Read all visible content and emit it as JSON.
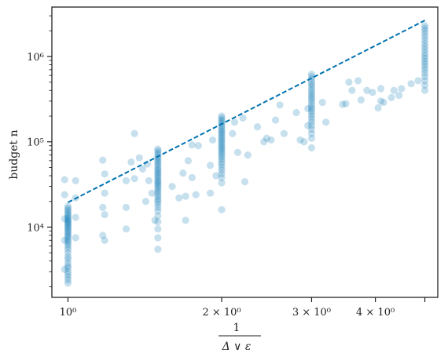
{
  "chart_data": {
    "type": "scatter",
    "title": "",
    "xlabel_num": "1",
    "xlabel_den": "Δ ∨ ε",
    "ylabel": "budget n",
    "xscale": "log",
    "yscale": "log",
    "xlim": [
      0.93,
      5.3
    ],
    "ylim": [
      1500,
      3800000
    ],
    "xticks": [
      {
        "value": 1,
        "label": "10⁰"
      },
      {
        "value": 2,
        "label": "2 × 10⁰"
      },
      {
        "value": 3,
        "label": "3 × 10⁰"
      },
      {
        "value": 4,
        "label": "4 × 10⁰"
      },
      {
        "value": 5,
        "label": ""
      }
    ],
    "yticks": [
      {
        "value": 10000,
        "label": "10⁴"
      },
      {
        "value": 100000,
        "label": "10⁵"
      },
      {
        "value": 1000000,
        "label": "10⁶"
      }
    ],
    "grid": false,
    "legend": "none",
    "colors": {
      "points": "#0072b2",
      "line": "#0072b2"
    },
    "trend_line": {
      "x": [
        1,
        5
      ],
      "y": [
        19500,
        2650000
      ],
      "style": "dashed"
    },
    "clusters": [
      {
        "x": 1.0,
        "y": [
          2200,
          2400,
          2600,
          2800,
          3000,
          3300,
          3500,
          3800,
          4200,
          4500,
          5000,
          5500,
          5900,
          6300,
          6700,
          7000,
          7400,
          7800,
          8100,
          8500,
          8900,
          9300,
          9700,
          10100,
          10500,
          10900,
          11300,
          11700,
          12100,
          12600,
          13100,
          13700,
          14300,
          15000,
          15800,
          16600,
          17500
        ]
      },
      {
        "x": 1.5,
        "y": [
          5500,
          7500,
          9500,
          11500,
          13500,
          15500,
          17000,
          18500,
          20000,
          21000,
          22500,
          24000,
          25500,
          27000,
          28500,
          30000,
          31500,
          33000,
          34500,
          36000,
          38000,
          40000,
          42000,
          44000,
          46000,
          48500,
          51000,
          54000,
          57000,
          60000,
          63000,
          66000,
          70000,
          74000,
          78000,
          82000
        ]
      },
      {
        "x": 2.0,
        "y": [
          16000,
          33000,
          38000,
          42000,
          46000,
          50000,
          54000,
          58000,
          62000,
          66000,
          70000,
          74000,
          78000,
          82000,
          86000,
          90000,
          95000,
          100000,
          105000,
          110000,
          116000,
          122000,
          128000,
          134000,
          140000,
          148000,
          156000,
          164000,
          172000,
          180000,
          190000,
          200000
        ]
      },
      {
        "x": 3.0,
        "y": [
          85000,
          110000,
          125000,
          140000,
          155000,
          170000,
          185000,
          200000,
          215000,
          230000,
          245000,
          260000,
          280000,
          300000,
          320000,
          340000,
          360000,
          385000,
          410000,
          440000,
          470000,
          500000,
          540000,
          580000,
          620000
        ]
      },
      {
        "x": 5.0,
        "y": [
          400000,
          460000,
          520000,
          580000,
          640000,
          700000,
          760000,
          820000,
          880000,
          950000,
          1020000,
          1100000,
          1200000,
          1300000,
          1420000,
          1550000,
          1700000,
          1850000,
          2000000,
          2150000,
          2300000
        ]
      }
    ],
    "scattered_points": [
      [
        0.985,
        36000
      ],
      [
        0.985,
        24000
      ],
      [
        0.985,
        12500
      ],
      [
        0.985,
        7000
      ],
      [
        0.985,
        3200
      ],
      [
        1.035,
        35000
      ],
      [
        1.035,
        22000
      ],
      [
        1.035,
        13000
      ],
      [
        1.035,
        7500
      ],
      [
        1.17,
        61000
      ],
      [
        1.17,
        17000
      ],
      [
        1.17,
        8000
      ],
      [
        1.18,
        42000
      ],
      [
        1.18,
        25000
      ],
      [
        1.18,
        14000
      ],
      [
        1.18,
        7000
      ],
      [
        1.3,
        35000
      ],
      [
        1.3,
        17000
      ],
      [
        1.3,
        9500
      ],
      [
        1.33,
        58000
      ],
      [
        1.35,
        125000
      ],
      [
        1.35,
        37000
      ],
      [
        1.38,
        65000
      ],
      [
        1.4,
        48000
      ],
      [
        1.43,
        55000
      ],
      [
        1.42,
        20000
      ],
      [
        1.44,
        35000
      ],
      [
        1.46,
        25000
      ],
      [
        1.48,
        12000
      ],
      [
        1.6,
        30000
      ],
      [
        1.65,
        22000
      ],
      [
        1.68,
        43000
      ],
      [
        1.7,
        12000
      ],
      [
        1.7,
        23000
      ],
      [
        1.72,
        60000
      ],
      [
        1.75,
        38000
      ],
      [
        1.75,
        92000
      ],
      [
        1.78,
        24000
      ],
      [
        1.8,
        90000
      ],
      [
        1.9,
        53000
      ],
      [
        1.9,
        25000
      ],
      [
        1.92,
        105000
      ],
      [
        1.95,
        40000
      ],
      [
        2.1,
        125000
      ],
      [
        2.12,
        170000
      ],
      [
        2.15,
        75000
      ],
      [
        2.2,
        190000
      ],
      [
        2.22,
        34000
      ],
      [
        2.25,
        70000
      ],
      [
        2.35,
        150000
      ],
      [
        2.42,
        100000
      ],
      [
        2.45,
        110000
      ],
      [
        2.5,
        105000
      ],
      [
        2.55,
        180000
      ],
      [
        2.6,
        270000
      ],
      [
        2.65,
        125000
      ],
      [
        2.8,
        220000
      ],
      [
        2.85,
        105000
      ],
      [
        2.9,
        100000
      ],
      [
        2.95,
        155000
      ],
      [
        2.95,
        245000
      ],
      [
        3.15,
        290000
      ],
      [
        3.2,
        170000
      ],
      [
        3.45,
        275000
      ],
      [
        3.5,
        280000
      ],
      [
        3.55,
        500000
      ],
      [
        3.6,
        400000
      ],
      [
        3.7,
        520000
      ],
      [
        3.75,
        310000
      ],
      [
        3.85,
        400000
      ],
      [
        3.95,
        380000
      ],
      [
        4.05,
        250000
      ],
      [
        4.1,
        300000
      ],
      [
        4.1,
        420000
      ],
      [
        4.15,
        290000
      ],
      [
        4.3,
        330000
      ],
      [
        4.35,
        400000
      ],
      [
        4.45,
        350000
      ],
      [
        4.5,
        420000
      ],
      [
        4.7,
        480000
      ],
      [
        4.85,
        520000
      ]
    ]
  }
}
